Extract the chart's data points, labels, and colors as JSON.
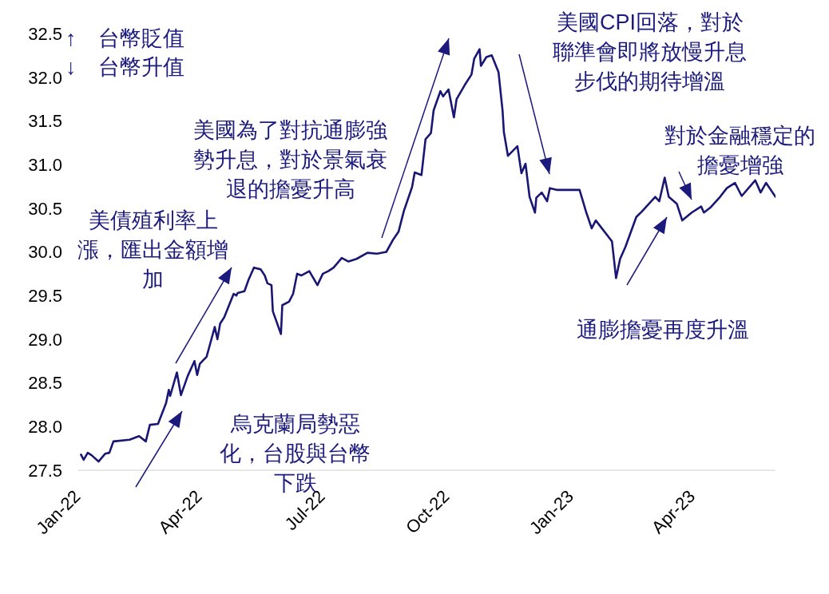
{
  "chart_data": {
    "type": "line",
    "x": [
      "2022-01-03",
      "2022-01-05",
      "2022-01-08",
      "2022-01-11",
      "2022-01-16",
      "2022-01-21",
      "2022-01-24",
      "2022-01-27",
      "2022-02-08",
      "2022-02-15",
      "2022-02-20",
      "2022-02-23",
      "2022-03-01",
      "2022-03-07",
      "2022-03-09",
      "2022-03-10",
      "2022-03-15",
      "2022-03-18",
      "2022-03-23",
      "2022-03-28",
      "2022-03-30",
      "2022-04-01",
      "2022-04-06",
      "2022-04-12",
      "2022-04-14",
      "2022-04-16",
      "2022-04-19",
      "2022-04-26",
      "2022-04-28",
      "2022-04-29",
      "2022-05-04",
      "2022-05-07",
      "2022-05-11",
      "2022-05-16",
      "2022-05-19",
      "2022-05-21",
      "2022-05-24",
      "2022-05-25",
      "2022-05-31",
      "2022-06-01",
      "2022-06-06",
      "2022-06-09",
      "2022-06-12",
      "2022-06-15",
      "2022-06-21",
      "2022-06-27",
      "2022-07-01",
      "2022-07-05",
      "2022-07-09",
      "2022-07-15",
      "2022-07-20",
      "2022-07-26",
      "2022-08-03",
      "2022-08-10",
      "2022-08-17",
      "2022-08-22",
      "2022-08-26",
      "2022-08-30",
      "2022-09-05",
      "2022-09-07",
      "2022-09-12",
      "2022-09-15",
      "2022-09-19",
      "2022-09-21",
      "2022-09-26",
      "2022-09-28",
      "2022-10-02",
      "2022-10-06",
      "2022-10-08",
      "2022-10-14",
      "2022-10-19",
      "2022-10-21",
      "2022-10-25",
      "2022-10-26",
      "2022-10-30",
      "2022-11-03",
      "2022-11-08",
      "2022-11-11",
      "2022-11-12",
      "2022-11-15",
      "2022-11-22",
      "2022-11-25",
      "2022-11-28",
      "2022-12-01",
      "2022-12-05",
      "2022-12-06",
      "2022-12-10",
      "2022-12-14",
      "2022-12-16",
      "2022-12-21",
      "2022-12-29",
      "2023-01-07",
      "2023-01-12",
      "2023-01-16",
      "2023-01-19",
      "2023-01-31",
      "2023-02-03",
      "2023-02-06",
      "2023-02-10",
      "2023-02-18",
      "2023-02-22",
      "2023-03-04",
      "2023-03-07",
      "2023-03-11",
      "2023-03-14",
      "2023-03-20",
      "2023-03-24",
      "2023-03-31",
      "2023-04-07",
      "2023-04-09",
      "2023-04-14",
      "2023-04-21",
      "2023-04-26",
      "2023-05-02",
      "2023-05-07",
      "2023-05-17",
      "2023-05-21",
      "2023-05-25",
      "2023-06-01"
    ],
    "series": [
      {
        "color": "#1a1673",
        "values": [
          27.68,
          27.62,
          27.7,
          27.67,
          27.6,
          27.69,
          27.7,
          27.83,
          27.85,
          27.89,
          27.83,
          28.02,
          28.03,
          28.27,
          28.42,
          28.35,
          28.62,
          28.36,
          28.58,
          28.75,
          28.59,
          28.72,
          28.8,
          29.14,
          29.0,
          29.18,
          29.25,
          29.52,
          29.5,
          29.53,
          29.55,
          29.68,
          29.82,
          29.8,
          29.73,
          29.64,
          29.62,
          29.32,
          29.06,
          29.39,
          29.43,
          29.52,
          29.75,
          29.73,
          29.78,
          29.62,
          29.75,
          29.78,
          29.82,
          29.93,
          29.89,
          29.92,
          29.99,
          29.98,
          30.0,
          30.14,
          30.23,
          30.47,
          30.74,
          30.91,
          30.88,
          31.29,
          31.36,
          31.62,
          31.84,
          31.78,
          31.86,
          31.54,
          31.75,
          31.91,
          32.03,
          32.21,
          32.32,
          32.13,
          32.23,
          32.25,
          32.06,
          31.62,
          31.37,
          31.1,
          31.21,
          30.9,
          31.01,
          30.63,
          30.45,
          30.62,
          30.68,
          30.58,
          30.73,
          30.71,
          30.71,
          30.71,
          30.45,
          30.27,
          30.36,
          30.12,
          29.7,
          29.92,
          30.06,
          30.4,
          30.46,
          30.63,
          30.58,
          30.85,
          30.63,
          30.55,
          30.36,
          30.45,
          30.52,
          30.45,
          30.51,
          30.63,
          30.73,
          30.79,
          30.64,
          30.82,
          30.68,
          30.79,
          30.63
        ]
      }
    ],
    "xticks": [
      {
        "value": "2022-01-01",
        "label": "Jan-22"
      },
      {
        "value": "2022-04-01",
        "label": "Apr-22"
      },
      {
        "value": "2022-07-01",
        "label": "Jul-22"
      },
      {
        "value": "2022-10-01",
        "label": "Oct-22"
      },
      {
        "value": "2023-01-01",
        "label": "Jan-23"
      },
      {
        "value": "2023-04-01",
        "label": "Apr-23"
      }
    ],
    "ylim": [
      27.5,
      32.5
    ],
    "xlim": [
      "2022-01-01",
      "2023-06-01"
    ],
    "yticks": [
      {
        "value": 27.5,
        "label": "27.5"
      },
      {
        "value": 28,
        "label": "28.0"
      },
      {
        "value": 28.5,
        "label": "28.5"
      },
      {
        "value": 29,
        "label": "29.0"
      },
      {
        "value": 29.5,
        "label": "29.5"
      },
      {
        "value": 30,
        "label": "30.0"
      },
      {
        "value": 30.5,
        "label": "30.5"
      },
      {
        "value": 31,
        "label": "31.0"
      },
      {
        "value": 31.5,
        "label": "31.5"
      },
      {
        "value": 32,
        "label": "32.0"
      },
      {
        "value": 32.5,
        "label": "32.5"
      }
    ],
    "grid": false,
    "legend": false,
    "marker": "none",
    "line_style": "solid",
    "annotations": [
      "↑　台幣貶值",
      "↓　台幣升值",
      "美債殖利率上漲，匯出金額增加",
      "美國為了對抗通膨強勢升息，對於景氣衰退的擔憂升高",
      "美國CPI回落，對於聯準會即將放慢升息步伐的期待增溫",
      "對於金融穩定的擔憂增強",
      "通膨擔憂再度升溫",
      "烏克蘭局勢惡化，台股與台幣下跌"
    ]
  }
}
